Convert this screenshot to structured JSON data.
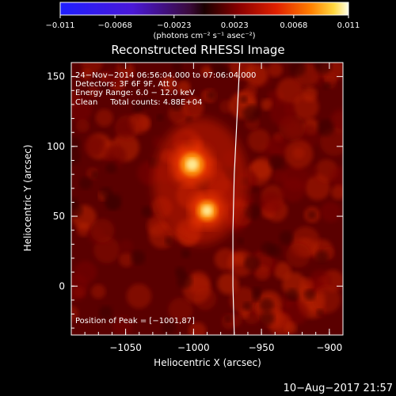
{
  "colorbar": {
    "ticks": [
      "−0.011",
      "−0.0068",
      "−0.0023",
      "0.0023",
      "0.0068",
      "0.011"
    ],
    "unit_label": "(photons cm⁻² s⁻¹ asec⁻²)"
  },
  "image_title": "Reconstructed RHESSI Image",
  "info": {
    "line1": "24−Nov−2014 06:56:04.000 to 07:06:04.000",
    "line2": "Detectors: 3F 6F 9F, Att 0",
    "line3": "Energy Range: 6.0 − 12.0 keV",
    "line4": "Clean     Total counts: 4.88E+04"
  },
  "peak_label": "Position of Peak = [−1001,87]",
  "footer_date": "10−Aug−2017 21:57",
  "chart_data": {
    "type": "heatmap",
    "title": "Reconstructed RHESSI Image",
    "xlabel": "Heliocentric X (arcsec)",
    "ylabel": "Heliocentric Y (arcsec)",
    "xlim": [
      -1090,
      -890
    ],
    "ylim": [
      -35,
      160
    ],
    "xticks": [
      -1050,
      -1000,
      -950,
      -900
    ],
    "xtick_labels": [
      "−1050",
      "−1000",
      "−950",
      "−900"
    ],
    "yticks": [
      0,
      50,
      100,
      150
    ],
    "ytick_labels": [
      "0",
      "50",
      "100",
      "150"
    ],
    "colorbar_range": [
      -0.011,
      0.011
    ],
    "sources": [
      {
        "x": -1001,
        "y": 87,
        "relative_intensity": 1.0
      },
      {
        "x": -990,
        "y": 54,
        "relative_intensity": 0.85
      }
    ],
    "peak": {
      "x": -1001,
      "y": 87
    },
    "limb_curve": [
      [
        -966,
        160
      ],
      [
        -968,
        120
      ],
      [
        -970,
        80
      ],
      [
        -971,
        40
      ],
      [
        -971,
        0
      ],
      [
        -970,
        -35
      ]
    ],
    "colormap": "red-temperature"
  }
}
